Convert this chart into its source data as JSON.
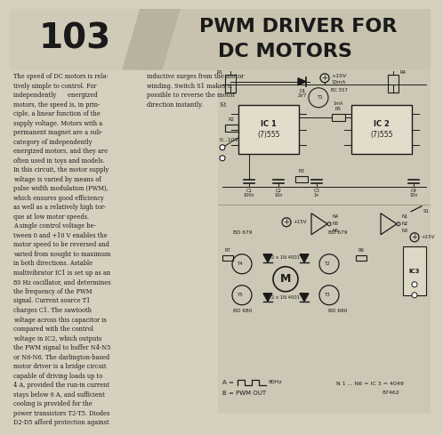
{
  "bg_color": "#d6d0be",
  "header_bg": "#c8c2ae",
  "header_number": "103",
  "header_title_line1": "PWM DRIVER FOR",
  "header_title_line2": "DC MOTORS",
  "body_text_col1": "The speed of DC motors is rela-\ntively simple to control. For\nindependently      energized\nmotors, the speed is, in prin-\nciple, a linear function of the\nsupply voltage. Motors with a\npermanent magnet are a sub-\ncategory of independently\nenergized motors, and they are\noften used in toys and models.\nIn this circuit, the motor supply\nvoltage is varied by means of\npulse width modulation (PWM),\nwhich ensures good efficiency\nas well as a relatively high tor-\nque at low motor speeds.\nA single control voltage be-\ntween 0 and +10 V enables the\nmotor speed to be reversed and\nvaried from nought to maximum\nin both directions. Astable\nmultivibrator IC1 is set up as an\n80 Hz oscillator, and determines\nthe frequency of the PWM\nsignal. Current source T1\ncharges C1. The sawtooth\nvoltage across this capacitor is\ncompared with the control\nvoltage in IC2, which outputs\nthe PWM signal to buffer N4-N5\nor N6-N6. The darlington-based\nmotor driver is a bridge circuit\ncapable of driving loads up to\n4 A, provided the run-in current\nstays below 6 A, and sufficient\ncooling is provided for the\npower transistors T2-T5. Diodes\nD2-D5 afford protection against",
  "body_text_col2": "inductive surges from the motor\nwinding. Switch S1 makes it\npossible to reverse the motor\ndirection instantly.         St",
  "footer_note": "N 1 ... N6 = IC 3 = 4049",
  "footer_code": "87462",
  "slash_color": "#b8b2a0",
  "text_color": "#1a1a1a",
  "circuit_bg": "#cdc8b5"
}
